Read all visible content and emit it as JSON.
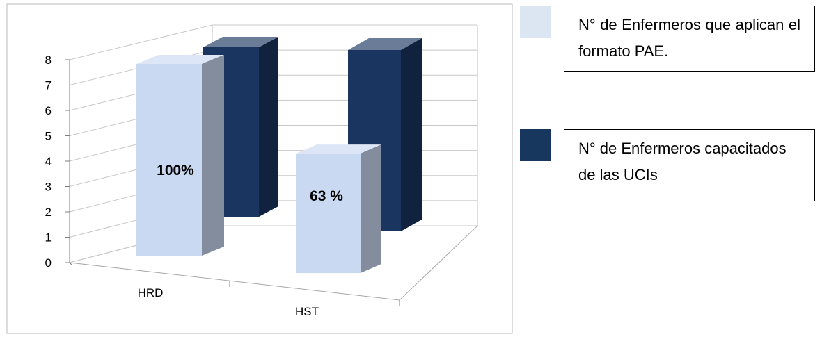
{
  "chart_data": {
    "type": "bar",
    "categories": [
      "HRD",
      "HST"
    ],
    "series": [
      {
        "name": "N° de Enfermeros que aplican el formato PAE.",
        "values": [
          8,
          5
        ],
        "color": "#c9d9f1",
        "labels": [
          "100%",
          "63 %"
        ]
      },
      {
        "name": "N° de Enfermeros capacitados de las UCIs",
        "values": [
          8,
          8
        ],
        "color": "#1a3560"
      }
    ],
    "yticks": [
      "0",
      "1",
      "2",
      "3",
      "4",
      "5",
      "6",
      "7",
      "8"
    ],
    "ylim": [
      0,
      8
    ],
    "grid": true,
    "legend_position": "right",
    "style": "3d-column"
  },
  "colors": {
    "series1": "#c9d9f1",
    "series2": "#1a3560",
    "legend_swatch1": "#dce6f2",
    "legend_swatch2": "#17375e"
  }
}
